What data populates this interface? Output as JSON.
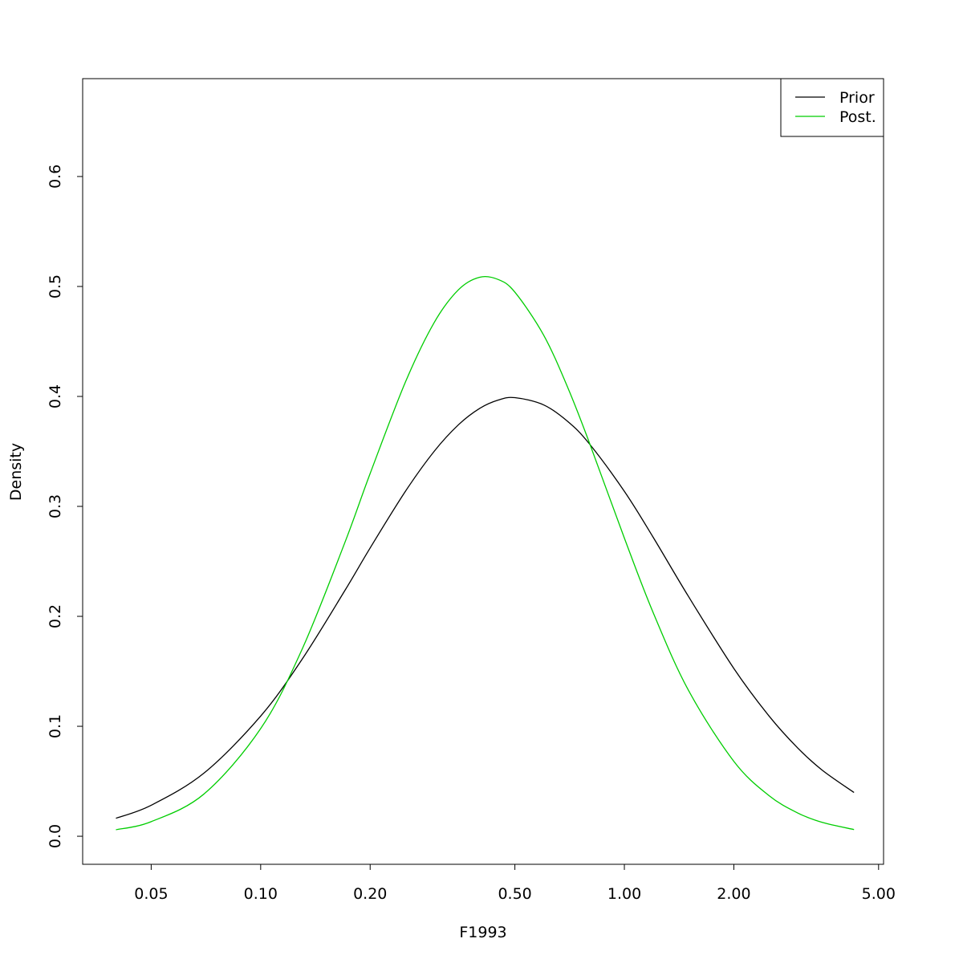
{
  "chart_data": {
    "type": "line",
    "x_label": "F1993",
    "y_label": "Density",
    "x_scale": "log",
    "x": [
      0.04,
      0.05,
      0.07,
      0.1,
      0.13,
      0.17,
      0.2,
      0.25,
      0.3,
      0.35,
      0.4,
      0.45,
      0.5,
      0.6,
      0.7,
      0.8,
      1.0,
      1.2,
      1.5,
      2.0,
      2.5,
      3.0,
      3.5,
      4.28
    ],
    "series": [
      {
        "name": "Prior",
        "color": "#000000",
        "values": [
          0.0164,
          0.0282,
          0.0577,
          0.1093,
          0.161,
          0.2229,
          0.2622,
          0.3137,
          0.3501,
          0.3743,
          0.3891,
          0.3967,
          0.3989,
          0.3923,
          0.377,
          0.3572,
          0.3137,
          0.2719,
          0.2182,
          0.1526,
          0.1093,
          0.0801,
          0.0601,
          0.0398
        ]
      },
      {
        "name": "Post.",
        "color": "#00cd00",
        "values": [
          0.0059,
          0.0133,
          0.0387,
          0.0979,
          0.1701,
          0.2662,
          0.3299,
          0.413,
          0.4672,
          0.4971,
          0.5084,
          0.5063,
          0.4948,
          0.4557,
          0.4075,
          0.3585,
          0.2712,
          0.2034,
          0.1328,
          0.0681,
          0.0369,
          0.0211,
          0.0126,
          0.0061
        ]
      }
    ],
    "xlim": [
      0.0324,
      5.16
    ],
    "ylim": [
      -0.0255,
      0.689
    ],
    "xticks": [
      0.05,
      {
        "value": 0.1,
        "label": "0.10"
      },
      {
        "value": 0.2,
        "label": "0.20"
      },
      {
        "value": 0.5,
        "label": "0.50"
      },
      {
        "value": 1,
        "label": "1.00"
      },
      {
        "value": 2,
        "label": "2.00"
      },
      {
        "value": 5,
        "label": "5.00"
      }
    ],
    "yticks": [
      {
        "value": 0,
        "label": "0.0"
      },
      0.1,
      0.2,
      0.3,
      0.4,
      0.5,
      0.6
    ],
    "legend": "top-right",
    "grid": false
  }
}
